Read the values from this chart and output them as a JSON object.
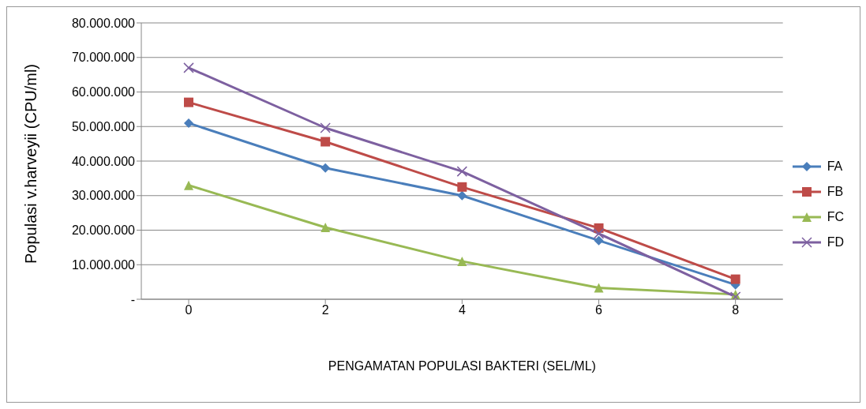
{
  "chart_data": {
    "type": "line",
    "xlabel": "PENGAMATAN POPULASI BAKTERI (SEL/ML)",
    "ylabel": "Populasi v.harveyii    (CPU/ml)",
    "categories": [
      "0",
      "2",
      "4",
      "6",
      "8"
    ],
    "series": [
      {
        "name": "FA",
        "color": "#4a7ebb",
        "marker": "diamond",
        "values": [
          51000000,
          38000000,
          30000000,
          17000000,
          4200000
        ]
      },
      {
        "name": "FB",
        "color": "#be4b48",
        "marker": "square",
        "values": [
          57000000,
          45600000,
          32500000,
          20600000,
          5800000
        ]
      },
      {
        "name": "FC",
        "color": "#98b954",
        "marker": "triangle",
        "values": [
          33000000,
          20800000,
          11000000,
          3300000,
          1400000
        ]
      },
      {
        "name": "FD",
        "color": "#7d60a0",
        "marker": "cross",
        "values": [
          67000000,
          49600000,
          37000000,
          19000000,
          700000
        ]
      }
    ],
    "ylim": [
      0,
      80000000
    ],
    "yticks": [
      {
        "value": 0,
        "label": "-"
      },
      {
        "value": 10000000,
        "label": "10.000.000"
      },
      {
        "value": 20000000,
        "label": "20.000.000"
      },
      {
        "value": 30000000,
        "label": "30.000.000"
      },
      {
        "value": 40000000,
        "label": "40.000.000"
      },
      {
        "value": 50000000,
        "label": "50.000.000"
      },
      {
        "value": 60000000,
        "label": "60.000.000"
      },
      {
        "value": 70000000,
        "label": "70.000.000"
      },
      {
        "value": 80000000,
        "label": "80.000.000"
      }
    ],
    "grid": "y",
    "legend": "right",
    "line_style": "solid"
  }
}
